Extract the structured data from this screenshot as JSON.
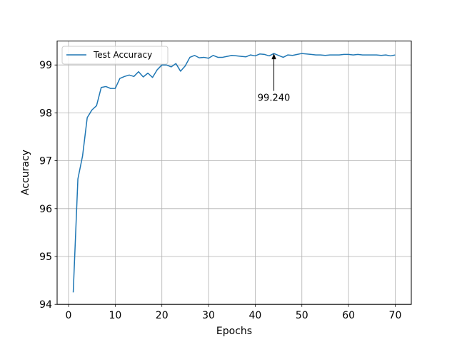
{
  "chart_data": {
    "type": "line",
    "title": "",
    "xlabel": "Epochs",
    "ylabel": "Accuracy",
    "xlim": [
      -2.45,
      73.45
    ],
    "ylim": [
      94,
      99.5
    ],
    "xticks": [
      0,
      10,
      20,
      30,
      40,
      50,
      60,
      70
    ],
    "yticks": [
      94,
      95,
      96,
      97,
      98,
      99
    ],
    "grid": true,
    "legend_position": "top-left",
    "series": [
      {
        "name": "Test Accuracy",
        "color": "#1f77b4",
        "x": [
          1,
          2,
          3,
          4,
          5,
          6,
          7,
          8,
          9,
          10,
          11,
          12,
          13,
          14,
          15,
          16,
          17,
          18,
          19,
          20,
          21,
          22,
          23,
          24,
          25,
          26,
          27,
          28,
          29,
          30,
          31,
          32,
          33,
          34,
          35,
          36,
          37,
          38,
          39,
          40,
          41,
          42,
          43,
          44,
          45,
          46,
          47,
          48,
          49,
          50,
          51,
          52,
          53,
          54,
          55,
          56,
          57,
          58,
          59,
          60,
          61,
          62,
          63,
          64,
          65,
          66,
          67,
          68,
          69,
          70
        ],
        "values": [
          94.25,
          96.62,
          97.1,
          97.9,
          98.06,
          98.15,
          98.53,
          98.55,
          98.51,
          98.51,
          98.72,
          98.76,
          98.79,
          98.76,
          98.86,
          98.75,
          98.83,
          98.74,
          98.9,
          99.0,
          99.0,
          98.96,
          99.03,
          98.87,
          98.98,
          99.16,
          99.2,
          99.15,
          99.16,
          99.14,
          99.2,
          99.16,
          99.16,
          99.18,
          99.2,
          99.19,
          99.18,
          99.17,
          99.21,
          99.19,
          99.23,
          99.22,
          99.19,
          99.24,
          99.2,
          99.16,
          99.21,
          99.2,
          99.22,
          99.24,
          99.23,
          99.22,
          99.21,
          99.21,
          99.2,
          99.21,
          99.21,
          99.21,
          99.22,
          99.22,
          99.21,
          99.22,
          99.21,
          99.21,
          99.21,
          99.21,
          99.2,
          99.21,
          99.19,
          99.21
        ]
      }
    ],
    "annotation": {
      "text": "99.240",
      "x": 44,
      "y": 99.24,
      "text_x": 44,
      "text_y": 98.25
    }
  }
}
